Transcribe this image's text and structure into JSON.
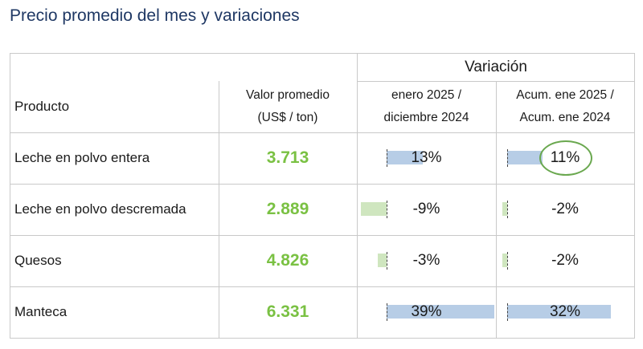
{
  "title": "Precio promedio del mes y variaciones",
  "header": {
    "variacion": "Variación",
    "producto": "Producto",
    "valor_line1": "Valor promedio",
    "valor_line2": "(US$ / ton)",
    "mensual_line1": "enero 2025 /",
    "mensual_line2": "diciembre 2024",
    "acum_line1": "Acum. ene 2025 /",
    "acum_line2": "Acum. ene 2024"
  },
  "rows": [
    {
      "producto": "Leche en polvo entera",
      "valor": "3.713",
      "mensual": "13%",
      "mensual_value": 13,
      "acum": "11%",
      "acum_value": 11,
      "acum_highlighted": true
    },
    {
      "producto": "Leche en polvo descremada",
      "valor": "2.889",
      "mensual": "-9%",
      "mensual_value": -9,
      "acum": "-2%",
      "acum_value": -2,
      "acum_highlighted": false
    },
    {
      "producto": "Quesos",
      "valor": "4.826",
      "mensual": "-3%",
      "mensual_value": -3,
      "acum": "-2%",
      "acum_value": -2,
      "acum_highlighted": false
    },
    {
      "producto": "Manteca",
      "valor": "6.331",
      "mensual": "39%",
      "mensual_value": 39,
      "acum": "32%",
      "acum_value": 32,
      "acum_highlighted": false
    }
  ],
  "colors": {
    "title": "#1f3864",
    "value": "#7ac143",
    "positive_bar": "#b7cde6",
    "negative_bar": "#cfe6bf",
    "highlight_circle": "#6aa84f"
  }
}
